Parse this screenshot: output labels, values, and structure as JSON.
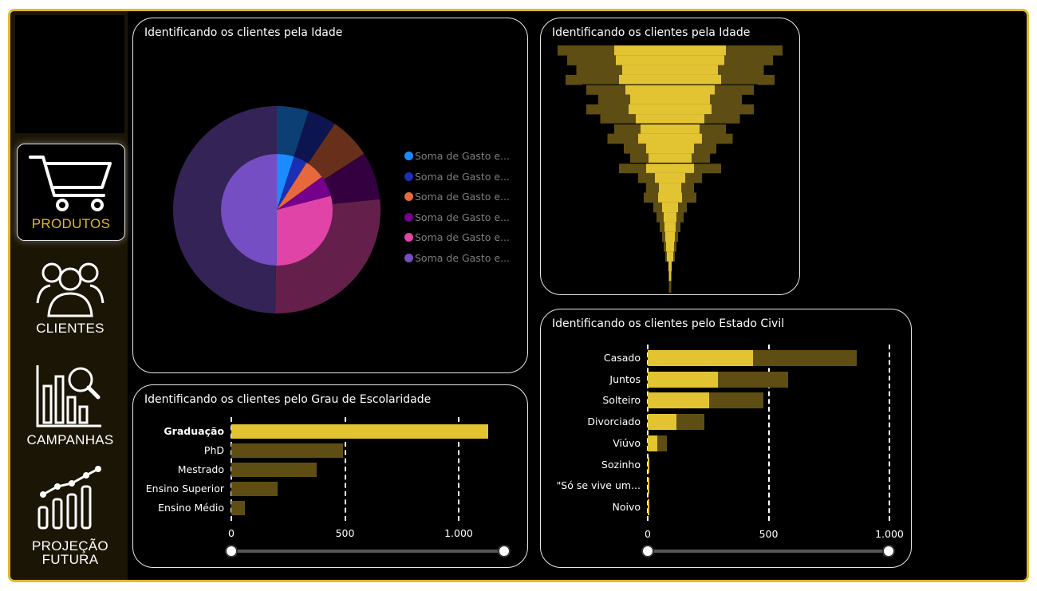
{
  "colors": {
    "frame": "#e0b92a",
    "gold": "#e2c332",
    "dark_gold": "#5e4e14",
    "sidebar": "#1b1505"
  },
  "nav": [
    {
      "label": "PRODUTOS",
      "icon": "cart-icon",
      "active": true
    },
    {
      "label": "CLIENTES",
      "icon": "people-icon"
    },
    {
      "label": "CAMPANHAS",
      "icon": "analytics-icon"
    },
    {
      "label": "PROJEÇÃO FUTURA",
      "line1": "PROJEÇÃO",
      "line2": "FUTURA",
      "icon": "growth-chart-icon"
    }
  ],
  "chart_data": [
    {
      "type": "pie",
      "title": "Identificando os clientes pela Idade",
      "legend": [
        {
          "label": "Soma de Gasto e...",
          "color": "#1a8cff"
        },
        {
          "label": "Soma de Gasto e...",
          "color": "#1c2fb3"
        },
        {
          "label": "Soma de Gasto e...",
          "color": "#e8683d"
        },
        {
          "label": "Soma de Gasto e...",
          "color": "#74008b"
        },
        {
          "label": "Soma de Gasto e...",
          "color": "#e044a7"
        },
        {
          "label": "Soma de Gasto e...",
          "color": "#744ec2"
        }
      ],
      "inner_values": [
        5,
        4,
        6,
        6,
        29,
        50
      ],
      "outer_values": [
        5,
        4.5,
        6.5,
        7.5,
        27,
        50
      ]
    },
    {
      "type": "bar",
      "title": "Identificando os clientes pela Idade",
      "subtype": "funnel",
      "series": [
        {
          "name": "dark",
          "values": [
            282,
            258,
            235,
            262,
            210,
            180,
            210,
            175,
            140,
            157,
            116,
            100,
            128,
            80,
            60,
            66,
            42,
            34,
            26,
            20,
            16,
            12,
            4,
            3
          ]
        },
        {
          "name": "light",
          "values": [
            140,
            136,
            120,
            128,
            112,
            100,
            104,
            86,
            74,
            80,
            60,
            54,
            60,
            38,
            28,
            30,
            20,
            16,
            14,
            12,
            10,
            8,
            4,
            3
          ]
        }
      ]
    },
    {
      "type": "bar",
      "title": "Identificando os clientes pelo Grau de Escolaridade",
      "categories": [
        "Graduação",
        "PhD",
        "Mestrado",
        "Ensino Superior",
        "Ensino Médio"
      ],
      "values": [
        1130,
        490,
        375,
        205,
        60
      ],
      "ticks": [
        "0",
        "500",
        "1.000"
      ],
      "xlim": [
        0,
        1200
      ]
    },
    {
      "type": "bar",
      "title": "Identificando os clientes pelo Estado Civil",
      "categories": [
        "Casado",
        "Juntos",
        "Solteiro",
        "Divorciado",
        "Viúvo",
        "Sozinho",
        "\"Só se vive um...",
        "Noivo"
      ],
      "series": [
        {
          "name": "total",
          "values": [
            865,
            580,
            480,
            235,
            80,
            3,
            2,
            2
          ]
        },
        {
          "name": "highlight",
          "values": [
            435,
            290,
            255,
            120,
            40,
            2,
            1,
            1
          ]
        }
      ],
      "ticks": [
        "0",
        "500",
        "1.000"
      ],
      "xlim": [
        0,
        1100
      ]
    }
  ]
}
